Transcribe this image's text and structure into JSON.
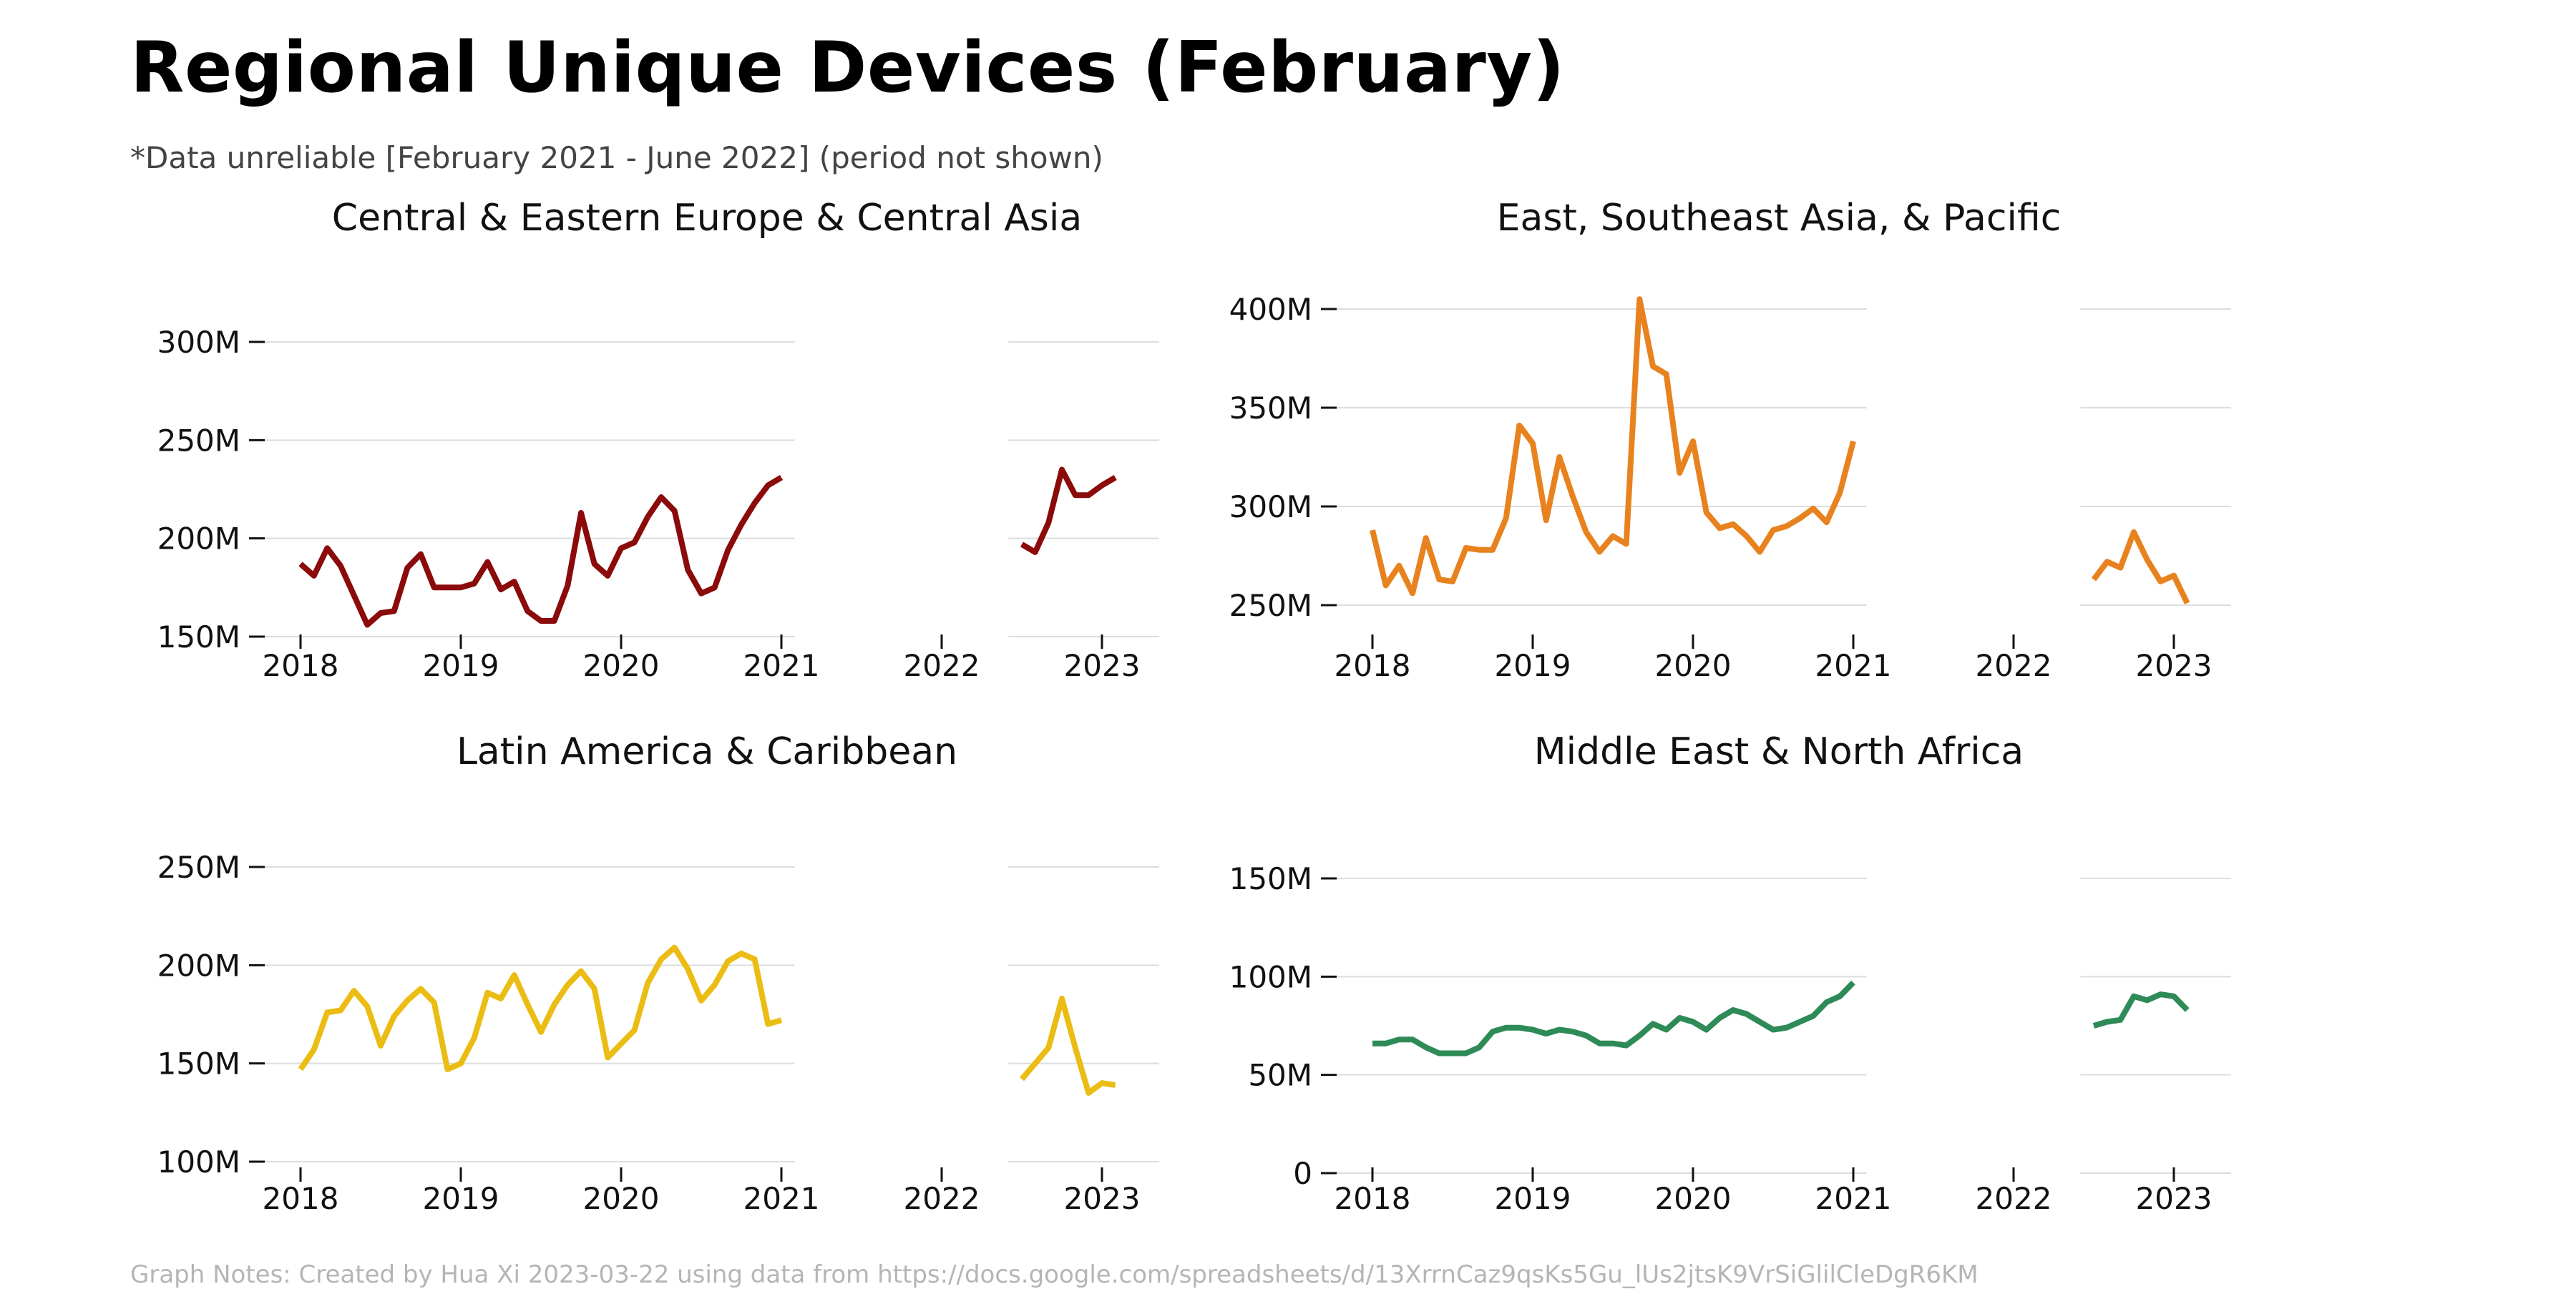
{
  "title": "Regional Unique Devices (February)",
  "subtitle": "*Data unreliable [February 2021 - June 2022] (period not shown)",
  "footnote": "Graph Notes: Created by Hua Xi 2023-03-22 using data from https://docs.google.com/spreadsheets/d/13XrrnCaz9qsKs5Gu_lUs2jtsK9VrSiGlilCleDgR6KM",
  "chart_data": [
    {
      "type": "line",
      "title": "Central & Eastern Europe & Central Asia",
      "color": "#8b0a0a",
      "x_ticks": [
        "2018",
        "2019",
        "2020",
        "2021",
        "2022",
        "2023"
      ],
      "y_ticks": [
        150,
        200,
        250,
        300
      ],
      "y_tick_labels": [
        "150M",
        "200M",
        "250M",
        "300M"
      ],
      "ylim": [
        150,
        300
      ],
      "gap": [
        "2021-02",
        "2022-06"
      ],
      "series": [
        {
          "x": [
            "2018-01",
            "2018-02",
            "2018-03",
            "2018-04",
            "2018-05",
            "2018-06",
            "2018-07",
            "2018-08",
            "2018-09",
            "2018-10",
            "2018-11",
            "2018-12",
            "2019-01",
            "2019-02",
            "2019-03",
            "2019-04",
            "2019-05",
            "2019-06",
            "2019-07",
            "2019-08",
            "2019-09",
            "2019-10",
            "2019-11",
            "2019-12",
            "2020-01",
            "2020-02",
            "2020-03",
            "2020-04",
            "2020-05",
            "2020-06",
            "2020-07",
            "2020-08",
            "2020-09",
            "2020-10",
            "2020-11",
            "2020-12",
            "2021-01",
            "2022-07",
            "2022-08",
            "2022-09",
            "2022-10",
            "2022-11",
            "2022-12",
            "2023-01",
            "2023-02"
          ],
          "y": [
            187,
            181,
            195,
            186,
            171,
            156,
            162,
            163,
            185,
            192,
            175,
            175,
            175,
            177,
            188,
            174,
            178,
            163,
            158,
            158,
            176,
            213,
            187,
            181,
            195,
            198,
            211,
            221,
            214,
            184,
            172,
            175,
            194,
            207,
            218,
            227,
            231,
            197,
            193,
            208,
            235,
            222,
            222,
            227,
            231
          ]
        }
      ]
    },
    {
      "type": "line",
      "title": "East, Southeast Asia, & Pacific",
      "color": "#e8821e",
      "x_ticks": [
        "2018",
        "2019",
        "2020",
        "2021",
        "2022",
        "2023"
      ],
      "y_ticks": [
        250,
        300,
        350,
        400
      ],
      "y_tick_labels": [
        "250M",
        "300M",
        "350M",
        "400M"
      ],
      "ylim": [
        250,
        400
      ],
      "gap": [
        "2021-02",
        "2022-06"
      ],
      "series": [
        {
          "x": [
            "2018-01",
            "2018-02",
            "2018-03",
            "2018-04",
            "2018-05",
            "2018-06",
            "2018-07",
            "2018-08",
            "2018-09",
            "2018-10",
            "2018-11",
            "2018-12",
            "2019-01",
            "2019-02",
            "2019-03",
            "2019-04",
            "2019-05",
            "2019-06",
            "2019-07",
            "2019-08",
            "2019-09",
            "2019-10",
            "2019-11",
            "2019-12",
            "2020-01",
            "2020-02",
            "2020-03",
            "2020-04",
            "2020-05",
            "2020-06",
            "2020-07",
            "2020-08",
            "2020-09",
            "2020-10",
            "2020-11",
            "2020-12",
            "2021-01",
            "2022-07",
            "2022-08",
            "2022-09",
            "2022-10",
            "2022-11",
            "2022-12",
            "2023-01",
            "2023-02"
          ],
          "y": [
            288,
            260,
            270,
            256,
            284,
            263,
            262,
            279,
            278,
            278,
            294,
            341,
            332,
            293,
            325,
            305,
            287,
            277,
            285,
            281,
            405,
            371,
            367,
            317,
            333,
            297,
            289,
            291,
            285,
            277,
            288,
            290,
            294,
            299,
            292,
            307,
            333,
            263,
            272,
            269,
            287,
            273,
            262,
            265,
            251
          ]
        }
      ]
    },
    {
      "type": "line",
      "title": "Latin America & Caribbean",
      "color": "#ebbd14",
      "x_ticks": [
        "2018",
        "2019",
        "2020",
        "2021",
        "2022",
        "2023"
      ],
      "y_ticks": [
        100,
        150,
        200,
        250
      ],
      "y_tick_labels": [
        "100M",
        "150M",
        "200M",
        "250M"
      ],
      "ylim": [
        100,
        250
      ],
      "gap": [
        "2021-02",
        "2022-06"
      ],
      "series": [
        {
          "x": [
            "2018-01",
            "2018-02",
            "2018-03",
            "2018-04",
            "2018-05",
            "2018-06",
            "2018-07",
            "2018-08",
            "2018-09",
            "2018-10",
            "2018-11",
            "2018-12",
            "2019-01",
            "2019-02",
            "2019-03",
            "2019-04",
            "2019-05",
            "2019-06",
            "2019-07",
            "2019-08",
            "2019-09",
            "2019-10",
            "2019-11",
            "2019-12",
            "2020-01",
            "2020-02",
            "2020-03",
            "2020-04",
            "2020-05",
            "2020-06",
            "2020-07",
            "2020-08",
            "2020-09",
            "2020-10",
            "2020-11",
            "2020-12",
            "2021-01",
            "2022-07",
            "2022-08",
            "2022-09",
            "2022-10",
            "2022-11",
            "2022-12",
            "2023-01",
            "2023-02"
          ],
          "y": [
            147,
            157,
            176,
            177,
            187,
            179,
            159,
            174,
            182,
            188,
            181,
            147,
            150,
            163,
            186,
            183,
            195,
            180,
            166,
            180,
            190,
            197,
            188,
            153,
            160,
            167,
            191,
            203,
            209,
            198,
            182,
            190,
            202,
            206,
            203,
            170,
            172,
            142,
            150,
            158,
            183,
            158,
            135,
            140,
            139
          ]
        }
      ]
    },
    {
      "type": "line",
      "title": "Middle East & North Africa",
      "color": "#2e8b57",
      "x_ticks": [
        "2018",
        "2019",
        "2020",
        "2021",
        "2022",
        "2023"
      ],
      "y_ticks": [
        0,
        50,
        100,
        150
      ],
      "y_tick_labels": [
        "0",
        "50M",
        "100M",
        "150M"
      ],
      "ylim": [
        0,
        150
      ],
      "gap": [
        "2021-02",
        "2022-06"
      ],
      "series": [
        {
          "x": [
            "2018-01",
            "2018-02",
            "2018-03",
            "2018-04",
            "2018-05",
            "2018-06",
            "2018-07",
            "2018-08",
            "2018-09",
            "2018-10",
            "2018-11",
            "2018-12",
            "2019-01",
            "2019-02",
            "2019-03",
            "2019-04",
            "2019-05",
            "2019-06",
            "2019-07",
            "2019-08",
            "2019-09",
            "2019-10",
            "2019-11",
            "2019-12",
            "2020-01",
            "2020-02",
            "2020-03",
            "2020-04",
            "2020-05",
            "2020-06",
            "2020-07",
            "2020-08",
            "2020-09",
            "2020-10",
            "2020-11",
            "2020-12",
            "2021-01",
            "2022-07",
            "2022-08",
            "2022-09",
            "2022-10",
            "2022-11",
            "2022-12",
            "2023-01",
            "2023-02"
          ],
          "y": [
            66,
            66,
            68,
            68,
            64,
            61,
            61,
            61,
            64,
            72,
            74,
            74,
            73,
            71,
            73,
            72,
            70,
            66,
            66,
            65,
            70,
            76,
            73,
            79,
            77,
            73,
            79,
            83,
            81,
            77,
            73,
            74,
            77,
            80,
            87,
            90,
            97,
            75,
            77,
            78,
            90,
            88,
            91,
            90,
            83
          ]
        }
      ]
    }
  ]
}
